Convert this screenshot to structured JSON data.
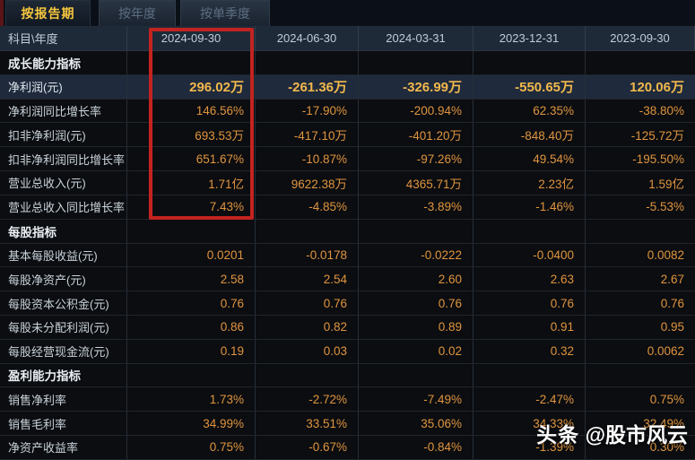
{
  "tabs": [
    {
      "label": "按报告期",
      "active": true
    },
    {
      "label": "按年度",
      "active": false
    },
    {
      "label": "按单季度",
      "active": false
    }
  ],
  "table": {
    "corner_label": "科目\\年度",
    "columns": [
      "2024-09-30",
      "2024-06-30",
      "2024-03-31",
      "2023-12-31",
      "2023-09-30"
    ],
    "rows": [
      {
        "type": "section",
        "label": "成长能力指标"
      },
      {
        "type": "data",
        "label": "净利润(元)",
        "highlighted": true,
        "values": [
          "296.02万",
          "-261.36万",
          "-326.99万",
          "-550.65万",
          "120.06万"
        ]
      },
      {
        "type": "data",
        "label": "净利润同比增长率",
        "values": [
          "146.56%",
          "-17.90%",
          "-200.94%",
          "62.35%",
          "-38.80%"
        ]
      },
      {
        "type": "data",
        "label": "扣非净利润(元)",
        "values": [
          "693.53万",
          "-417.10万",
          "-401.20万",
          "-848.40万",
          "-125.72万"
        ]
      },
      {
        "type": "data",
        "label": "扣非净利润同比增长率",
        "values": [
          "651.67%",
          "-10.87%",
          "-97.26%",
          "49.54%",
          "-195.50%"
        ]
      },
      {
        "type": "data",
        "label": "营业总收入(元)",
        "values": [
          "1.71亿",
          "9622.38万",
          "4365.71万",
          "2.23亿",
          "1.59亿"
        ]
      },
      {
        "type": "data",
        "label": "营业总收入同比增长率",
        "values": [
          "7.43%",
          "-4.85%",
          "-3.89%",
          "-1.46%",
          "-5.53%"
        ]
      },
      {
        "type": "section",
        "label": "每股指标"
      },
      {
        "type": "data",
        "label": "基本每股收益(元)",
        "values": [
          "0.0201",
          "-0.0178",
          "-0.0222",
          "-0.0400",
          "0.0082"
        ]
      },
      {
        "type": "data",
        "label": "每股净资产(元)",
        "values": [
          "2.58",
          "2.54",
          "2.60",
          "2.63",
          "2.67"
        ]
      },
      {
        "type": "data",
        "label": "每股资本公积金(元)",
        "values": [
          "0.76",
          "0.76",
          "0.76",
          "0.76",
          "0.76"
        ]
      },
      {
        "type": "data",
        "label": "每股未分配利润(元)",
        "values": [
          "0.86",
          "0.82",
          "0.89",
          "0.91",
          "0.95"
        ]
      },
      {
        "type": "data",
        "label": "每股经营现金流(元)",
        "values": [
          "0.19",
          "0.03",
          "0.02",
          "0.32",
          "0.0062"
        ]
      },
      {
        "type": "section",
        "label": "盈利能力指标"
      },
      {
        "type": "data",
        "label": "销售净利率",
        "values": [
          "1.73%",
          "-2.72%",
          "-7.49%",
          "-2.47%",
          "0.75%"
        ]
      },
      {
        "type": "data",
        "label": "销售毛利率",
        "values": [
          "34.99%",
          "33.51%",
          "35.06%",
          "34.33%",
          "32.49%"
        ]
      },
      {
        "type": "data",
        "label": "净资产收益率",
        "values": [
          "0.75%",
          "-0.67%",
          "-0.84%",
          "-1.39%",
          "0.30%"
        ]
      }
    ]
  },
  "annotation": {
    "highlighted_column": "2024-09-30",
    "box_color": "#c32320"
  },
  "watermark": {
    "brand": "头条",
    "handle": "@股市风云"
  },
  "colors": {
    "accent_gold": "#f6c73e",
    "value_orange": "#e0943f",
    "highlight_value": "#f1b84d",
    "header_bg": "#1f2a38",
    "highlight_row_bg": "#1f2a3c",
    "annotation_red": "#c32320"
  }
}
